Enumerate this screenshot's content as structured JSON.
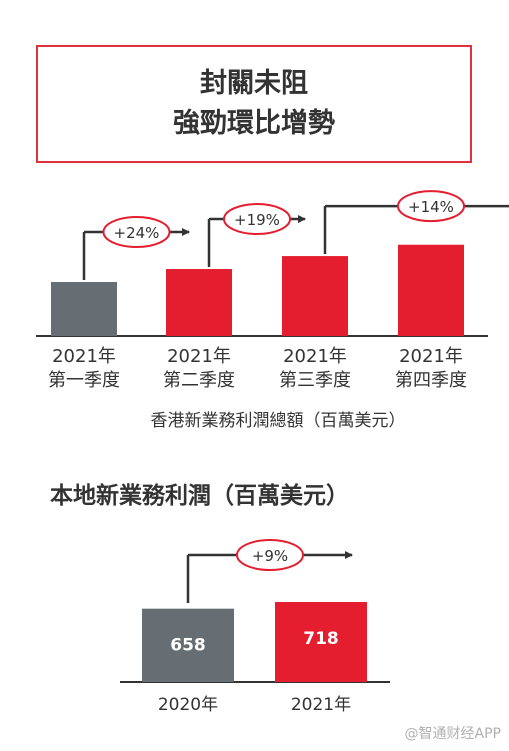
{
  "headline": {
    "line1": "封關未阻",
    "line2": "強勁環比增勢"
  },
  "chart_data": [
    {
      "type": "bar",
      "title": "",
      "xlabel": "香港新業務利潤總額（百萬美元）",
      "ylabel": "",
      "categories": [
        [
          "2021年",
          "第一季度"
        ],
        [
          "2021年",
          "第二季度"
        ],
        [
          "2021年",
          "第三季度"
        ],
        [
          "2021年",
          "第四季度"
        ]
      ],
      "values": [
        100,
        124,
        148,
        169
      ],
      "growth_labels": [
        "+24%",
        "+19%",
        "+14%"
      ],
      "colors": [
        "#666e73",
        "#e41d2f",
        "#e41d2f",
        "#e41d2f"
      ]
    },
    {
      "type": "bar",
      "title": "本地新業務利潤（百萬美元）",
      "xlabel": "",
      "ylabel": "",
      "categories": [
        "2020年",
        "2021年"
      ],
      "values": [
        658,
        718
      ],
      "data_labels": [
        "658",
        "718"
      ],
      "growth_labels": [
        "+9%"
      ],
      "colors": [
        "#666e73",
        "#e41d2f"
      ]
    }
  ],
  "watermark": "@智通财经APP"
}
